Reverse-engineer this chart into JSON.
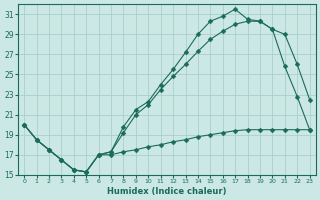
{
  "xlabel": "Humidex (Indice chaleur)",
  "xlim": [
    -0.5,
    23.5
  ],
  "ylim": [
    15,
    32
  ],
  "yticks": [
    15,
    17,
    19,
    21,
    23,
    25,
    27,
    29,
    31
  ],
  "xticks": [
    0,
    1,
    2,
    3,
    4,
    5,
    6,
    7,
    8,
    9,
    10,
    11,
    12,
    13,
    14,
    15,
    16,
    17,
    18,
    19,
    20,
    21,
    22,
    23
  ],
  "bg_color": "#cce8e4",
  "grid_color": "#aacfcc",
  "line_color": "#1a6b5a",
  "line1_x": [
    0,
    1,
    2,
    3,
    4,
    5,
    6,
    7,
    8,
    9,
    10,
    11,
    12,
    13,
    14,
    15,
    16,
    17,
    18,
    19,
    20,
    21,
    22,
    23
  ],
  "line1_y": [
    20.0,
    18.5,
    17.5,
    16.5,
    15.5,
    15.3,
    17.0,
    17.3,
    19.8,
    21.5,
    22.3,
    24.0,
    25.5,
    27.2,
    29.0,
    30.3,
    30.8,
    31.5,
    30.5,
    30.3,
    29.5,
    29.0,
    26.0,
    22.5
  ],
  "line2_x": [
    0,
    1,
    2,
    3,
    4,
    5,
    6,
    7,
    8,
    9,
    10,
    11,
    12,
    13,
    14,
    15,
    16,
    17,
    18,
    19,
    20,
    21,
    22,
    23
  ],
  "line2_y": [
    20.0,
    18.5,
    17.5,
    16.5,
    15.5,
    15.3,
    17.0,
    17.3,
    19.2,
    21.0,
    22.0,
    23.5,
    24.8,
    26.0,
    27.3,
    28.5,
    29.3,
    30.0,
    30.3,
    30.3,
    29.5,
    25.8,
    22.8,
    19.5
  ],
  "line3_x": [
    0,
    1,
    2,
    3,
    4,
    5,
    6,
    7,
    8,
    9,
    10,
    11,
    12,
    13,
    14,
    15,
    16,
    17,
    18,
    19,
    20,
    21,
    22,
    23
  ],
  "line3_y": [
    20.0,
    18.5,
    17.5,
    16.5,
    15.5,
    15.3,
    17.0,
    17.0,
    17.3,
    17.5,
    17.8,
    18.0,
    18.3,
    18.5,
    18.8,
    19.0,
    19.2,
    19.4,
    19.5,
    19.5,
    19.5,
    19.5,
    19.5,
    19.5
  ]
}
